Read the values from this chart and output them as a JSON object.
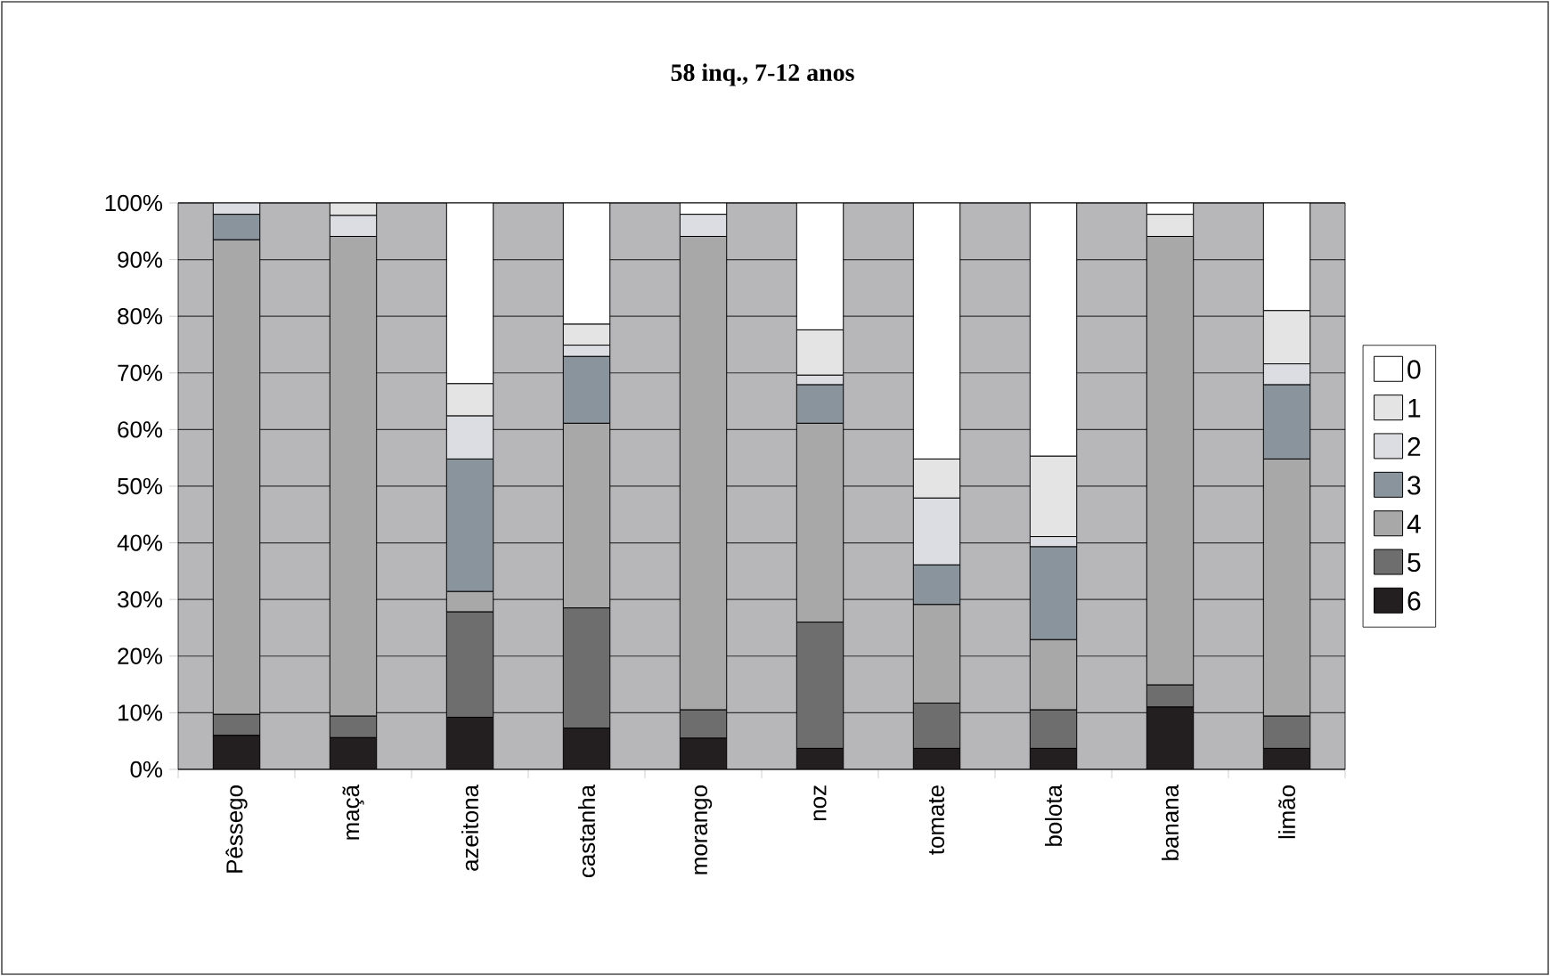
{
  "chart_data": {
    "type": "bar",
    "stacked": true,
    "title": "58 inq., 7-12 anos",
    "categories": [
      "Pêssego",
      "maçã",
      "azeitona",
      "castanha",
      "morango",
      "noz",
      "tomate",
      "bolota",
      "banana",
      "limão"
    ],
    "series": [
      {
        "name": "6",
        "color": "#231f20",
        "values": [
          6.0,
          5.6,
          9.2,
          7.3,
          5.5,
          3.7,
          3.7,
          3.7,
          11.0,
          3.7
        ]
      },
      {
        "name": "5",
        "color": "#6e6e6e",
        "values": [
          3.7,
          3.8,
          18.6,
          21.2,
          5.0,
          22.3,
          8.0,
          6.8,
          3.9,
          5.7
        ]
      },
      {
        "name": "4",
        "color": "#a8a8a8",
        "values": [
          83.8,
          84.7,
          3.6,
          32.6,
          83.6,
          35.1,
          17.4,
          12.4,
          79.2,
          45.4
        ]
      },
      {
        "name": "3",
        "color": "#8a949c",
        "values": [
          4.5,
          0,
          23.4,
          11.8,
          0,
          6.8,
          7.0,
          16.4,
          0,
          13.1
        ]
      },
      {
        "name": "2",
        "color": "#dcdde2",
        "values": [
          2.0,
          3.7,
          7.6,
          2.0,
          3.9,
          1.7,
          11.8,
          1.8,
          0,
          3.7
        ]
      },
      {
        "name": "1",
        "color": "#e4e4e4",
        "values": [
          0,
          2.2,
          5.7,
          3.7,
          0,
          8.0,
          6.9,
          14.2,
          3.9,
          9.4
        ]
      },
      {
        "name": "0",
        "color": "#ffffff",
        "values": [
          0,
          0,
          31.9,
          21.4,
          2.0,
          22.4,
          45.2,
          44.7,
          2.0,
          19.0
        ]
      }
    ],
    "ylim": [
      0,
      100
    ],
    "yticks": [
      {
        "value": 0,
        "label": "0%"
      },
      {
        "value": 10,
        "label": "10%"
      },
      {
        "value": 20,
        "label": "20%"
      },
      {
        "value": 30,
        "label": "30%"
      },
      {
        "value": 40,
        "label": "40%"
      },
      {
        "value": 50,
        "label": "50%"
      },
      {
        "value": 60,
        "label": "60%"
      },
      {
        "value": 70,
        "label": "70%"
      },
      {
        "value": 80,
        "label": "80%"
      },
      {
        "value": 90,
        "label": "90%"
      },
      {
        "value": 100,
        "label": "100%"
      }
    ],
    "grid": "y",
    "legend": "right"
  }
}
